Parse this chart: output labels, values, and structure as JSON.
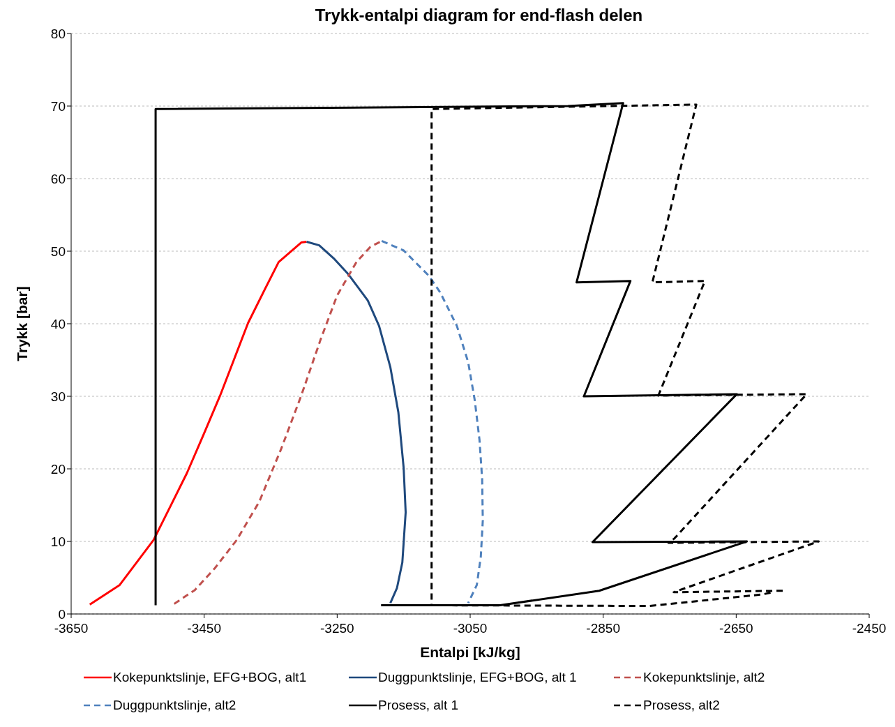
{
  "chart_data": {
    "type": "line",
    "title": "Trykk-entalpi diagram for end-flash delen",
    "xlabel": "Entalpi [kJ/kg]",
    "ylabel": "Trykk [bar]",
    "xlim": [
      -3650,
      -2450
    ],
    "xticks": [
      -3650,
      -3450,
      -3250,
      -3050,
      -2850,
      -2650,
      -2450
    ],
    "ylim": [
      0,
      80
    ],
    "yticks": [
      0,
      10,
      20,
      30,
      40,
      50,
      60,
      70,
      80
    ],
    "grid": "y",
    "legend": "bottom",
    "marker": "none",
    "series": [
      {
        "name": "Kokepunktslinje, EFG+BOG, alt1",
        "color": "#ff0000",
        "line_style": "solid",
        "x": [
          -3622,
          -3577,
          -3526,
          -3501,
          -3476,
          -3451,
          -3426,
          -3405,
          -3384,
          -3359,
          -3338,
          -3304,
          -3296
        ],
        "values": [
          1.3,
          4.0,
          10.2,
          14.8,
          19.4,
          24.7,
          30.1,
          35.1,
          40.1,
          44.7,
          48.5,
          51.2,
          51.3
        ]
      },
      {
        "name": "Duggpunktslinje, EFG+BOG, alt 1",
        "color": "#1f497d",
        "line_style": "solid",
        "x": [
          -3296,
          -3277,
          -3254,
          -3233,
          -3204,
          -3187,
          -3170,
          -3158,
          -3150,
          -3147,
          -3152,
          -3160,
          -3170
        ],
        "values": [
          51.3,
          50.8,
          48.9,
          46.8,
          43.2,
          39.7,
          34.0,
          27.8,
          20.1,
          14.0,
          7.1,
          3.6,
          1.5
        ]
      },
      {
        "name": "Kokepunktslinje, alt2",
        "color": "#c0504d",
        "line_style": "dashed",
        "x": [
          -3495,
          -3464,
          -3434,
          -3401,
          -3367,
          -3334,
          -3304,
          -3275,
          -3250,
          -3221,
          -3200,
          -3183
        ],
        "values": [
          1.4,
          3.3,
          6.3,
          10.2,
          15.5,
          22.8,
          30.1,
          37.8,
          43.9,
          48.5,
          50.6,
          51.4
        ]
      },
      {
        "name": "Duggpunktslinje, alt2",
        "color": "#4f81bd",
        "line_style": "dashed",
        "x": [
          -3183,
          -3150,
          -3112,
          -3095,
          -3070,
          -3053,
          -3043,
          -3036,
          -3032,
          -3031,
          -3034,
          -3040,
          -3053
        ],
        "values": [
          51.4,
          50.1,
          46.6,
          44.3,
          39.7,
          34.7,
          29.4,
          24.0,
          18.6,
          12.9,
          7.9,
          4.0,
          1.5
        ]
      },
      {
        "name": "Prosess, alt 1",
        "color": "#000000",
        "line_style": "solid",
        "x": [
          -3523,
          -3523,
          -2903,
          -2820,
          -2890,
          -2809,
          -2879,
          -2649,
          -2866,
          -2634,
          -2856,
          -3005,
          -3184
        ],
        "values": [
          1.2,
          69.6,
          70.0,
          70.4,
          45.7,
          45.9,
          30.0,
          30.3,
          9.9,
          10.0,
          3.2,
          1.2,
          1.2
        ]
      },
      {
        "name": "Prosess, alt2",
        "color": "#000000",
        "line_style": "dashed",
        "x": [
          -2580,
          -2744,
          -2526,
          -2752,
          -2743,
          -2544,
          -2767,
          -2697,
          -2776,
          -2710,
          -3108,
          -3108,
          -2780,
          -2610,
          -2595
        ],
        "values": [
          3.2,
          3.0,
          10.0,
          9.8,
          10.4,
          30.3,
          30.1,
          45.9,
          45.7,
          70.2,
          69.6,
          1.2,
          1.1,
          2.7,
          3.0
        ]
      }
    ]
  }
}
